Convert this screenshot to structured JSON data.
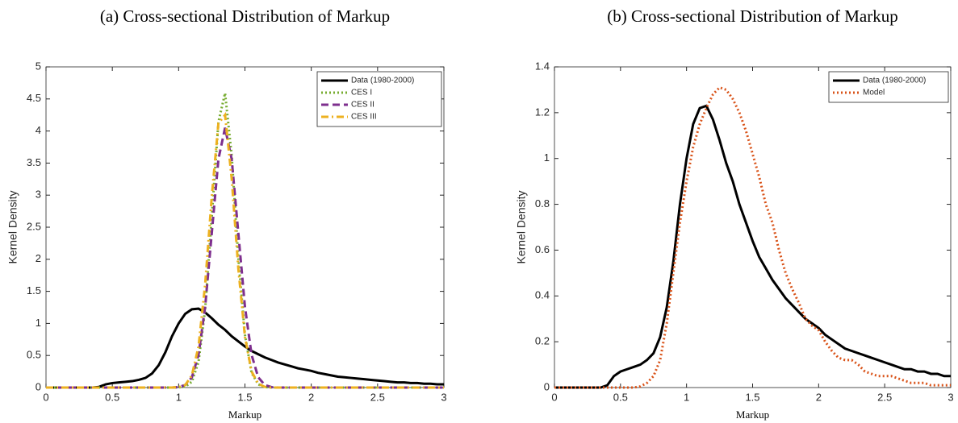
{
  "chart_data": [
    {
      "type": "line",
      "title": "(a) Cross-sectional Distribution of Markup",
      "xlabel": "Markup",
      "ylabel": "Kernel Density",
      "x": [
        0,
        0.05,
        0.1,
        0.15,
        0.2,
        0.25,
        0.3,
        0.35,
        0.4,
        0.45,
        0.5,
        0.55,
        0.6,
        0.65,
        0.7,
        0.75,
        0.8,
        0.85,
        0.9,
        0.95,
        1,
        1.05,
        1.1,
        1.15,
        1.2,
        1.25,
        1.3,
        1.35,
        1.4,
        1.45,
        1.5,
        1.55,
        1.6,
        1.65,
        1.7,
        1.75,
        1.8,
        1.85,
        1.9,
        1.95,
        2,
        2.05,
        2.1,
        2.15,
        2.2,
        2.25,
        2.3,
        2.35,
        2.4,
        2.45,
        2.5,
        2.55,
        2.6,
        2.65,
        2.7,
        2.75,
        2.8,
        2.85,
        2.9,
        2.95,
        3
      ],
      "series": [
        {
          "name": "Data (1980-2000)",
          "color": "#000000",
          "linestyle": "solid",
          "values": [
            0,
            0,
            0,
            0,
            0,
            0,
            0,
            0,
            0.01,
            0.05,
            0.07,
            0.08,
            0.09,
            0.1,
            0.12,
            0.15,
            0.22,
            0.35,
            0.55,
            0.8,
            1.0,
            1.15,
            1.22,
            1.23,
            1.17,
            1.08,
            0.98,
            0.9,
            0.8,
            0.72,
            0.64,
            0.57,
            0.52,
            0.47,
            0.43,
            0.39,
            0.36,
            0.33,
            0.3,
            0.28,
            0.26,
            0.23,
            0.21,
            0.19,
            0.17,
            0.16,
            0.15,
            0.14,
            0.13,
            0.12,
            0.11,
            0.1,
            0.09,
            0.08,
            0.08,
            0.07,
            0.07,
            0.06,
            0.06,
            0.05,
            0.05
          ]
        },
        {
          "name": "CES I",
          "color": "#77ac30",
          "linestyle": "dotted",
          "values": [
            0,
            0,
            0,
            0,
            0,
            0,
            0,
            0,
            0,
            0,
            0,
            0,
            0,
            0,
            0,
            0,
            0,
            0,
            0,
            0,
            0.002,
            0.016,
            0.09,
            0.4,
            1.22,
            2.67,
            4.14,
            4.59,
            3.62,
            2.03,
            0.82,
            0.23,
            0.05,
            0.007,
            0,
            0,
            0,
            0,
            0,
            0,
            0,
            0,
            0,
            0,
            0,
            0,
            0,
            0,
            0,
            0,
            0,
            0,
            0,
            0,
            0,
            0,
            0,
            0,
            0,
            0,
            0
          ]
        },
        {
          "name": "CES II",
          "color": "#7e2f8e",
          "linestyle": "dashed",
          "values": [
            0,
            0,
            0,
            0,
            0,
            0,
            0,
            0,
            0,
            0,
            0,
            0,
            0,
            0,
            0,
            0,
            0,
            0,
            0,
            0,
            0.007,
            0.04,
            0.16,
            0.51,
            1.26,
            2.41,
            3.56,
            4.05,
            3.56,
            2.41,
            1.26,
            0.51,
            0.16,
            0.04,
            0.007,
            0,
            0,
            0,
            0,
            0,
            0,
            0,
            0,
            0,
            0,
            0,
            0,
            0,
            0,
            0,
            0,
            0,
            0,
            0,
            0,
            0,
            0,
            0,
            0,
            0,
            0
          ]
        },
        {
          "name": "CES III",
          "color": "#edb120",
          "linestyle": "dashdot",
          "values": [
            0,
            0,
            0,
            0,
            0,
            0,
            0,
            0,
            0,
            0,
            0,
            0,
            0,
            0,
            0,
            0,
            0,
            0,
            0,
            0,
            0.007,
            0.04,
            0.19,
            0.64,
            1.61,
            2.98,
            4.12,
            4.25,
            3.26,
            1.86,
            0.79,
            0.25,
            0.06,
            0.01,
            0,
            0,
            0,
            0,
            0,
            0,
            0,
            0,
            0,
            0,
            0,
            0,
            0,
            0,
            0,
            0,
            0,
            0,
            0,
            0,
            0,
            0,
            0,
            0,
            0,
            0,
            0
          ]
        }
      ],
      "xlim": [
        0,
        3
      ],
      "xticks": [
        0,
        0.5,
        1,
        1.5,
        2,
        2.5,
        3
      ],
      "ylim": [
        0,
        5
      ],
      "yticks": [
        0,
        0.5,
        1,
        1.5,
        2,
        2.5,
        3,
        3.5,
        4,
        4.5,
        5
      ],
      "legend": "upper right",
      "grid": false
    },
    {
      "type": "line",
      "title": "(b) Cross-sectional Distribution of Markup",
      "xlabel": "Markup",
      "ylabel": "Kernel Density",
      "x": [
        0,
        0.05,
        0.1,
        0.15,
        0.2,
        0.25,
        0.3,
        0.35,
        0.4,
        0.45,
        0.5,
        0.55,
        0.6,
        0.65,
        0.7,
        0.75,
        0.8,
        0.85,
        0.9,
        0.95,
        1,
        1.05,
        1.1,
        1.15,
        1.2,
        1.25,
        1.3,
        1.35,
        1.4,
        1.45,
        1.5,
        1.55,
        1.6,
        1.65,
        1.7,
        1.75,
        1.8,
        1.85,
        1.9,
        1.95,
        2,
        2.05,
        2.1,
        2.15,
        2.2,
        2.25,
        2.3,
        2.35,
        2.4,
        2.45,
        2.5,
        2.55,
        2.6,
        2.65,
        2.7,
        2.75,
        2.8,
        2.85,
        2.9,
        2.95,
        3
      ],
      "series": [
        {
          "name": "Data (1980-2000)",
          "color": "#000000",
          "linestyle": "solid",
          "values": [
            0,
            0,
            0,
            0,
            0,
            0,
            0,
            0,
            0.01,
            0.05,
            0.07,
            0.08,
            0.09,
            0.1,
            0.12,
            0.15,
            0.22,
            0.35,
            0.55,
            0.8,
            1.0,
            1.15,
            1.22,
            1.23,
            1.17,
            1.08,
            0.98,
            0.9,
            0.8,
            0.72,
            0.64,
            0.57,
            0.52,
            0.47,
            0.43,
            0.39,
            0.36,
            0.33,
            0.3,
            0.28,
            0.26,
            0.23,
            0.21,
            0.19,
            0.17,
            0.16,
            0.15,
            0.14,
            0.13,
            0.12,
            0.11,
            0.1,
            0.09,
            0.08,
            0.08,
            0.07,
            0.07,
            0.06,
            0.06,
            0.05,
            0.05
          ]
        },
        {
          "name": "Model",
          "color": "#d95319",
          "linestyle": "dotted",
          "values": [
            0,
            0,
            0,
            0,
            0,
            0,
            0,
            0,
            0,
            0,
            0,
            0,
            0,
            0.005,
            0.02,
            0.05,
            0.12,
            0.28,
            0.5,
            0.72,
            0.9,
            1.05,
            1.15,
            1.22,
            1.28,
            1.31,
            1.3,
            1.26,
            1.2,
            1.12,
            1.02,
            0.92,
            0.8,
            0.72,
            0.6,
            0.5,
            0.43,
            0.37,
            0.3,
            0.27,
            0.25,
            0.2,
            0.16,
            0.13,
            0.12,
            0.12,
            0.1,
            0.07,
            0.06,
            0.05,
            0.05,
            0.05,
            0.04,
            0.03,
            0.02,
            0.02,
            0.02,
            0.01,
            0.01,
            0.01,
            0.01
          ]
        }
      ],
      "xlim": [
        0,
        3
      ],
      "xticks": [
        0,
        0.5,
        1,
        1.5,
        2,
        2.5,
        3
      ],
      "ylim": [
        0,
        1.4
      ],
      "yticks": [
        0,
        0.2,
        0.4,
        0.6,
        0.8,
        1,
        1.2,
        1.4
      ],
      "legend": "upper right",
      "grid": false
    }
  ]
}
